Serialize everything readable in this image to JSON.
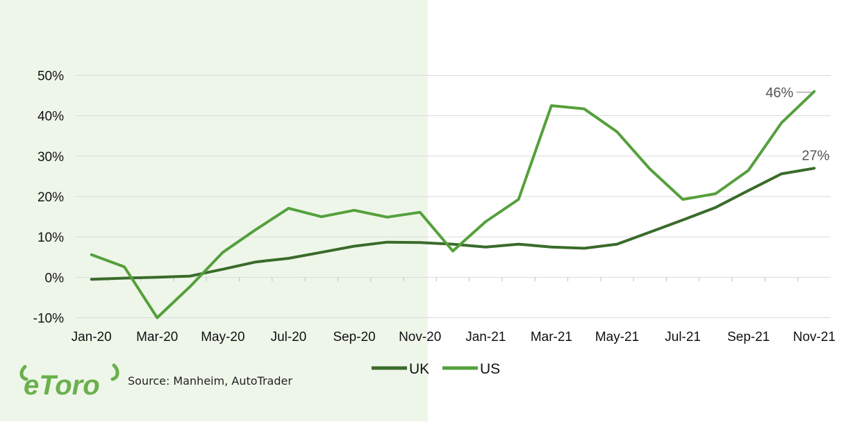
{
  "brand": {
    "logo_text": "eToro",
    "logo_color": "#6ab04c"
  },
  "source_text": "Source: Manheim, AutoTrader",
  "colors": {
    "background_left": "#eef6ea",
    "uk": "#3a6b2a",
    "us": "#55a03c",
    "grid": "#d9d9d9",
    "axis_text": "#111111",
    "annotation_text": "#555555"
  },
  "chart_data": {
    "type": "line",
    "categories": [
      "Jan-20",
      "Feb-20",
      "Mar-20",
      "Apr-20",
      "May-20",
      "Jun-20",
      "Jul-20",
      "Aug-20",
      "Sep-20",
      "Oct-20",
      "Nov-20",
      "Dec-20",
      "Jan-21",
      "Feb-21",
      "Mar-21",
      "Apr-21",
      "May-21",
      "Jun-21",
      "Jul-21",
      "Aug-21",
      "Sep-21",
      "Oct-21",
      "Nov-21"
    ],
    "x_tick_labels": [
      "Jan-20",
      "Mar-20",
      "May-20",
      "Jul-20",
      "Sep-20",
      "Nov-20",
      "Jan-21",
      "Mar-21",
      "May-21",
      "Jul-21",
      "Sep-21",
      "Nov-21"
    ],
    "y_ticks": [
      -10,
      0,
      10,
      20,
      30,
      40,
      50
    ],
    "y_tick_labels": [
      "-10%",
      "0%",
      "10%",
      "20%",
      "30%",
      "40%",
      "50%"
    ],
    "ylim": [
      -10,
      50
    ],
    "series": [
      {
        "name": "UK",
        "values": [
          -0.5,
          -0.2,
          0,
          0.3,
          2,
          3.8,
          4.7,
          6.2,
          7.7,
          8.7,
          8.6,
          8.2,
          7.5,
          8.2,
          7.5,
          7.2,
          8.2,
          11.2,
          14.2,
          17.3,
          21.5,
          25.6,
          27
        ]
      },
      {
        "name": "US",
        "values": [
          5.6,
          2.6,
          -10,
          -2.3,
          6.2,
          11.8,
          17.1,
          15,
          16.6,
          14.9,
          16.1,
          6.5,
          13.8,
          19.3,
          42.5,
          41.7,
          36,
          26.8,
          19.3,
          20.7,
          26.5,
          38.2,
          46
        ]
      }
    ],
    "annotations": [
      {
        "series": "US",
        "text": "46%"
      },
      {
        "series": "UK",
        "text": "27%"
      }
    ],
    "shaded_region": {
      "from": "Jan-20",
      "to": "Dec-20"
    },
    "grid": true,
    "legend": "bottom"
  }
}
